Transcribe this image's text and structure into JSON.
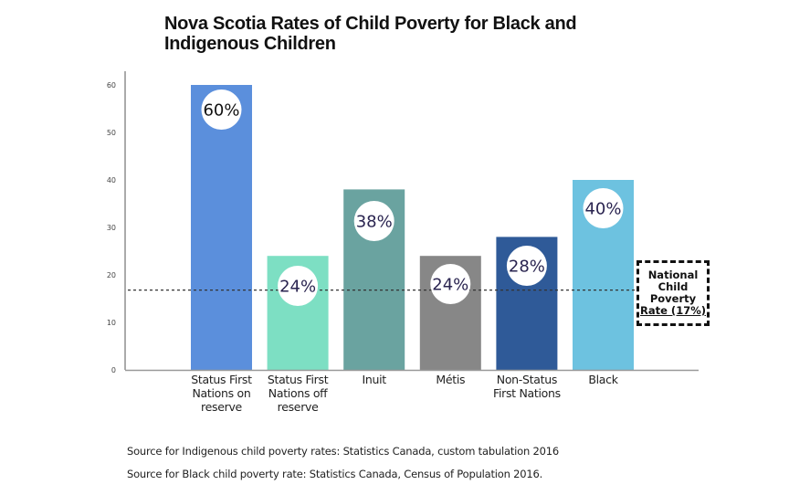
{
  "chart_data": {
    "type": "bar",
    "title": "Nova Scotia Rates of Child Poverty for Black and Indigenous Children",
    "xlabel": "",
    "ylabel": "",
    "ylim": [
      0,
      60
    ],
    "yticks": [
      0,
      10,
      20,
      30,
      40,
      50,
      60
    ],
    "grid": false,
    "categories": [
      "Status First Nations on reserve",
      "Status First Nations off reserve",
      "Inuit",
      "Métis",
      "Non-Status First Nations",
      "Black"
    ],
    "category_lines": [
      [
        "Status First",
        "Nations on",
        "reserve"
      ],
      [
        "Status First",
        "Nations off",
        "reserve"
      ],
      [
        "Inuit"
      ],
      [
        "Métis"
      ],
      [
        "Non-Status",
        "First Nations"
      ],
      [
        "Black"
      ]
    ],
    "values": [
      60,
      24,
      38,
      24,
      28,
      40
    ],
    "data_labels": [
      "60%",
      "24%",
      "38%",
      "24%",
      "28%",
      "40%"
    ],
    "colors": [
      "#5b8fdc",
      "#7ddfc3",
      "#6aa3a0",
      "#878787",
      "#2f5a98",
      "#6dc2e0"
    ],
    "reference_line": {
      "value": 17,
      "label": "National Child Poverty Rate (17%)",
      "label_lines": [
        "National",
        "Child",
        "Poverty",
        "Rate (17%)"
      ],
      "style": "dotted"
    }
  },
  "sources": [
    "Source for Indigenous child poverty rates: Statistics Canada, custom tabulation 2016",
    "Source for Black child poverty rate: Statistics Canada, Census of Population 2016."
  ],
  "label_text_color": "#2a2450"
}
